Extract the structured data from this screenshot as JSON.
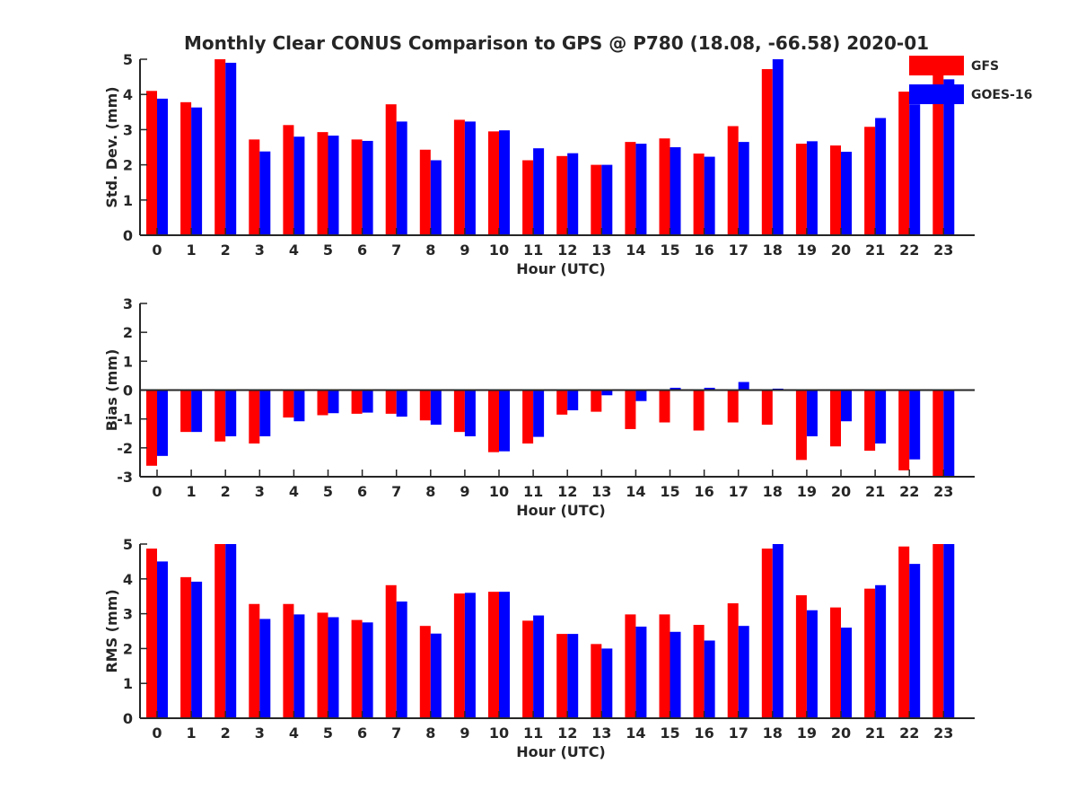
{
  "chart_data": [
    {
      "type": "bar",
      "title": "Monthly Clear CONUS Comparison to GPS @ P780 (18.08, -66.58) 2020-01",
      "xlabel": "Hour (UTC)",
      "ylabel": "Std. Dev. (mm)",
      "ylim": [
        0,
        5
      ],
      "yticks": [
        0,
        1,
        2,
        3,
        4,
        5
      ],
      "legend": "top-right",
      "categories": [
        "0",
        "1",
        "2",
        "3",
        "4",
        "5",
        "6",
        "7",
        "8",
        "9",
        "10",
        "11",
        "12",
        "13",
        "14",
        "15",
        "16",
        "17",
        "18",
        "19",
        "20",
        "21",
        "22",
        "23"
      ],
      "series": [
        {
          "name": "GFS",
          "color": "#ff0000",
          "values": [
            4.1,
            3.78,
            5.0,
            2.72,
            3.13,
            2.93,
            2.72,
            3.72,
            2.43,
            3.28,
            2.95,
            2.13,
            2.25,
            2.0,
            2.65,
            2.75,
            2.32,
            3.1,
            4.72,
            2.6,
            2.55,
            3.08,
            4.08,
            5.0
          ]
        },
        {
          "name": "GOES-16",
          "color": "#0000ff",
          "values": [
            3.88,
            3.63,
            4.9,
            2.38,
            2.8,
            2.83,
            2.68,
            3.23,
            2.13,
            3.23,
            2.98,
            2.47,
            2.33,
            2.0,
            2.6,
            2.5,
            2.23,
            2.65,
            5.0,
            2.67,
            2.37,
            3.33,
            3.72,
            4.43
          ]
        }
      ]
    },
    {
      "type": "bar",
      "xlabel": "Hour (UTC)",
      "ylabel": "Bias (mm)",
      "ylim": [
        -3,
        3
      ],
      "yticks": [
        -3,
        -2,
        -1,
        0,
        1,
        2,
        3
      ],
      "categories": [
        "0",
        "1",
        "2",
        "3",
        "4",
        "5",
        "6",
        "7",
        "8",
        "9",
        "10",
        "11",
        "12",
        "13",
        "14",
        "15",
        "16",
        "17",
        "18",
        "19",
        "20",
        "21",
        "22",
        "23"
      ],
      "series": [
        {
          "name": "GFS",
          "color": "#ff0000",
          "values": [
            -2.62,
            -1.45,
            -1.78,
            -1.85,
            -0.95,
            -0.87,
            -0.82,
            -0.82,
            -1.05,
            -1.45,
            -2.15,
            -1.85,
            -0.85,
            -0.75,
            -1.35,
            -1.12,
            -1.4,
            -1.12,
            -1.2,
            -2.42,
            -1.95,
            -2.1,
            -2.78,
            -3.0
          ]
        },
        {
          "name": "GOES-16",
          "color": "#0000ff",
          "values": [
            -2.28,
            -1.45,
            -1.6,
            -1.6,
            -1.08,
            -0.8,
            -0.78,
            -0.92,
            -1.2,
            -1.6,
            -2.12,
            -1.62,
            -0.7,
            -0.18,
            -0.38,
            0.08,
            0.08,
            0.28,
            0.05,
            -1.6,
            -1.08,
            -1.85,
            -2.4,
            -3.0
          ]
        }
      ]
    },
    {
      "type": "bar",
      "xlabel": "Hour (UTC)",
      "ylabel": "RMS (mm)",
      "ylim": [
        0,
        5
      ],
      "yticks": [
        0,
        1,
        2,
        3,
        4,
        5
      ],
      "categories": [
        "0",
        "1",
        "2",
        "3",
        "4",
        "5",
        "6",
        "7",
        "8",
        "9",
        "10",
        "11",
        "12",
        "13",
        "14",
        "15",
        "16",
        "17",
        "18",
        "19",
        "20",
        "21",
        "22",
        "23"
      ],
      "series": [
        {
          "name": "GFS",
          "color": "#ff0000",
          "values": [
            4.87,
            4.05,
            5.0,
            3.28,
            3.28,
            3.03,
            2.82,
            3.82,
            2.65,
            3.58,
            3.63,
            2.8,
            2.42,
            2.13,
            2.98,
            2.98,
            2.68,
            3.3,
            4.87,
            3.53,
            3.18,
            3.72,
            4.93,
            5.0
          ]
        },
        {
          "name": "GOES-16",
          "color": "#0000ff",
          "values": [
            4.5,
            3.92,
            5.0,
            2.85,
            2.98,
            2.9,
            2.75,
            3.35,
            2.43,
            3.6,
            3.63,
            2.95,
            2.42,
            2.0,
            2.63,
            2.48,
            2.23,
            2.65,
            5.0,
            3.1,
            2.6,
            3.82,
            4.43,
            5.0
          ]
        }
      ]
    }
  ]
}
